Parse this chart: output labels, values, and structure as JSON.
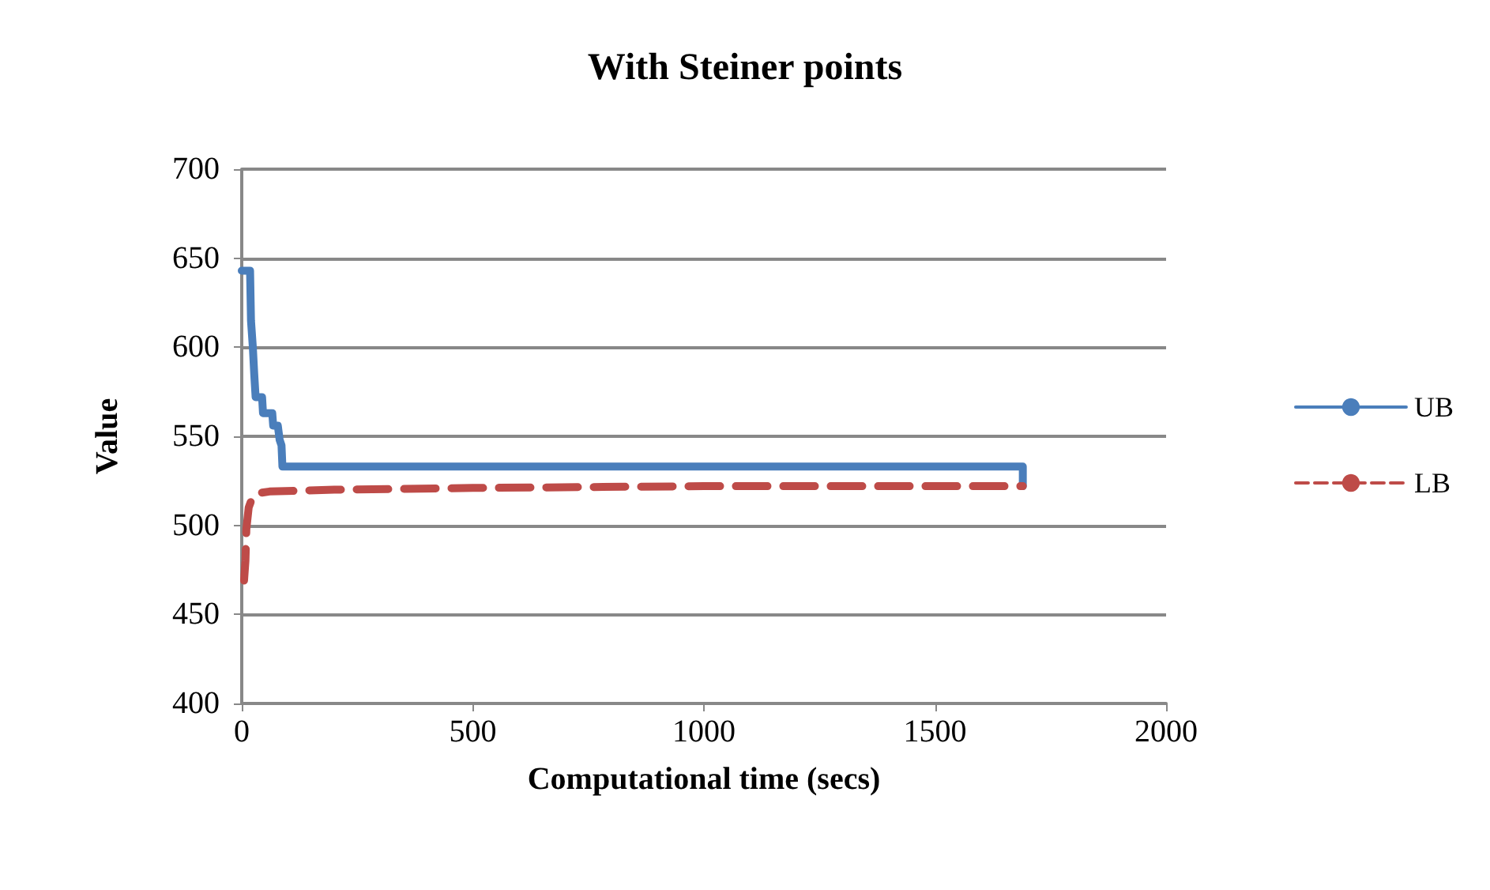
{
  "chart_data": {
    "type": "line",
    "title": "With Steiner points",
    "xlabel": "Computational time (secs)",
    "ylabel": "Value",
    "xlim": [
      0,
      2000
    ],
    "xticks": [
      0,
      500,
      1000,
      1500,
      2000
    ],
    "ylim": [
      400,
      700
    ],
    "yticks": [
      400,
      450,
      500,
      550,
      600,
      650,
      700
    ],
    "grid": "y",
    "legend": "right",
    "marker": "none",
    "series": [
      {
        "name": "UB",
        "color": "#4a7ebb",
        "line_style": "solid",
        "x": [
          0,
          18,
          20,
          24,
          27,
          30,
          44,
          46,
          66,
          68,
          78,
          82,
          86,
          88,
          1690,
          1690
        ],
        "values": [
          643,
          643,
          615,
          600,
          585,
          572,
          572,
          563,
          563,
          556,
          556,
          548,
          545,
          533,
          533,
          522
        ]
      },
      {
        "name": "LB",
        "color": "#be4b48",
        "line_style": "dashed",
        "x": [
          5,
          8,
          10,
          15,
          22,
          35,
          60,
          200,
          500,
          1000,
          1690
        ],
        "values": [
          469,
          480,
          498,
          510,
          515,
          518,
          519,
          520,
          521,
          522,
          522
        ]
      }
    ]
  }
}
